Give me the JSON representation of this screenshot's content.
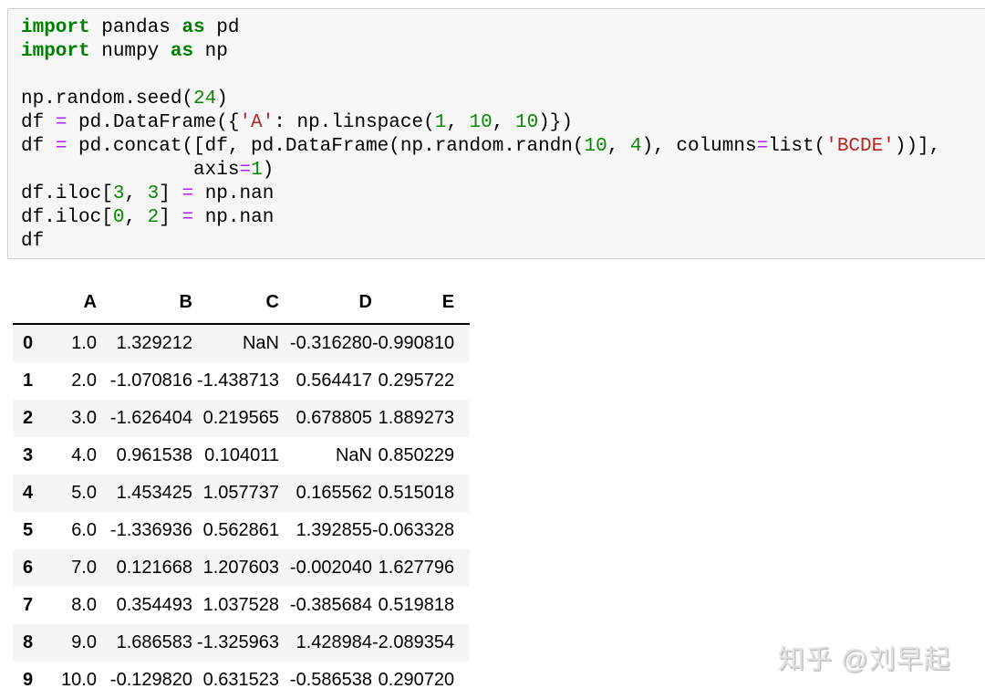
{
  "colors": {
    "keyword": "#008000",
    "number": "#088800",
    "operator": "#AA22FF",
    "string": "#BA2121",
    "cell_background": "#f7f7f7",
    "cell_border": "#cfcfcf",
    "row_stripe": "#f5f5f5",
    "header_border": "#000000",
    "watermark_gray": "#e2e2e2"
  },
  "code_cell": {
    "language": "python",
    "lines": [
      [
        {
          "t": "kw",
          "v": "import"
        },
        {
          "t": "txt",
          "v": " pandas "
        },
        {
          "t": "kw",
          "v": "as"
        },
        {
          "t": "txt",
          "v": " pd"
        }
      ],
      [
        {
          "t": "kw",
          "v": "import"
        },
        {
          "t": "txt",
          "v": " numpy "
        },
        {
          "t": "kw",
          "v": "as"
        },
        {
          "t": "txt",
          "v": " np"
        }
      ],
      [],
      [
        {
          "t": "txt",
          "v": "np.random.seed("
        },
        {
          "t": "num",
          "v": "24"
        },
        {
          "t": "txt",
          "v": ")"
        }
      ],
      [
        {
          "t": "txt",
          "v": "df "
        },
        {
          "t": "op",
          "v": "="
        },
        {
          "t": "txt",
          "v": " pd.DataFrame({"
        },
        {
          "t": "str",
          "v": "'A'"
        },
        {
          "t": "txt",
          "v": ": np.linspace("
        },
        {
          "t": "num",
          "v": "1"
        },
        {
          "t": "txt",
          "v": ", "
        },
        {
          "t": "num",
          "v": "10"
        },
        {
          "t": "txt",
          "v": ", "
        },
        {
          "t": "num",
          "v": "10"
        },
        {
          "t": "txt",
          "v": ")})"
        }
      ],
      [
        {
          "t": "txt",
          "v": "df "
        },
        {
          "t": "op",
          "v": "="
        },
        {
          "t": "txt",
          "v": " pd.concat([df, pd.DataFrame(np.random.randn("
        },
        {
          "t": "num",
          "v": "10"
        },
        {
          "t": "txt",
          "v": ", "
        },
        {
          "t": "num",
          "v": "4"
        },
        {
          "t": "txt",
          "v": "), columns"
        },
        {
          "t": "op",
          "v": "="
        },
        {
          "t": "txt",
          "v": "list("
        },
        {
          "t": "str",
          "v": "'BCDE'"
        },
        {
          "t": "txt",
          "v": "))],"
        }
      ],
      [
        {
          "t": "txt",
          "v": "               axis"
        },
        {
          "t": "op",
          "v": "="
        },
        {
          "t": "num",
          "v": "1"
        },
        {
          "t": "txt",
          "v": ")"
        }
      ],
      [
        {
          "t": "txt",
          "v": "df.iloc["
        },
        {
          "t": "num",
          "v": "3"
        },
        {
          "t": "txt",
          "v": ", "
        },
        {
          "t": "num",
          "v": "3"
        },
        {
          "t": "txt",
          "v": "] "
        },
        {
          "t": "op",
          "v": "="
        },
        {
          "t": "txt",
          "v": " np.nan"
        }
      ],
      [
        {
          "t": "txt",
          "v": "df.iloc["
        },
        {
          "t": "num",
          "v": "0"
        },
        {
          "t": "txt",
          "v": ", "
        },
        {
          "t": "num",
          "v": "2"
        },
        {
          "t": "txt",
          "v": "] "
        },
        {
          "t": "op",
          "v": "="
        },
        {
          "t": "txt",
          "v": " np.nan"
        }
      ],
      [
        {
          "t": "txt",
          "v": "df"
        }
      ]
    ]
  },
  "table": {
    "index_header": "",
    "columns": [
      "A",
      "B",
      "C",
      "D",
      "E"
    ],
    "rows": [
      {
        "index": "0",
        "cells": [
          "1.0",
          "1.329212",
          "NaN",
          "-0.316280",
          "-0.990810"
        ]
      },
      {
        "index": "1",
        "cells": [
          "2.0",
          "-1.070816",
          "-1.438713",
          "0.564417",
          "0.295722"
        ]
      },
      {
        "index": "2",
        "cells": [
          "3.0",
          "-1.626404",
          "0.219565",
          "0.678805",
          "1.889273"
        ]
      },
      {
        "index": "3",
        "cells": [
          "4.0",
          "0.961538",
          "0.104011",
          "NaN",
          "0.850229"
        ]
      },
      {
        "index": "4",
        "cells": [
          "5.0",
          "1.453425",
          "1.057737",
          "0.165562",
          "0.515018"
        ]
      },
      {
        "index": "5",
        "cells": [
          "6.0",
          "-1.336936",
          "0.562861",
          "1.392855",
          "-0.063328"
        ]
      },
      {
        "index": "6",
        "cells": [
          "7.0",
          "0.121668",
          "1.207603",
          "-0.002040",
          "1.627796"
        ]
      },
      {
        "index": "7",
        "cells": [
          "8.0",
          "0.354493",
          "1.037528",
          "-0.385684",
          "0.519818"
        ]
      },
      {
        "index": "8",
        "cells": [
          "9.0",
          "1.686583",
          "-1.325963",
          "1.428984",
          "-2.089354"
        ]
      },
      {
        "index": "9",
        "cells": [
          "10.0",
          "-0.129820",
          "0.631523",
          "-0.586538",
          "0.290720"
        ]
      }
    ]
  },
  "watermark": {
    "text": "知乎 @刘早起"
  }
}
